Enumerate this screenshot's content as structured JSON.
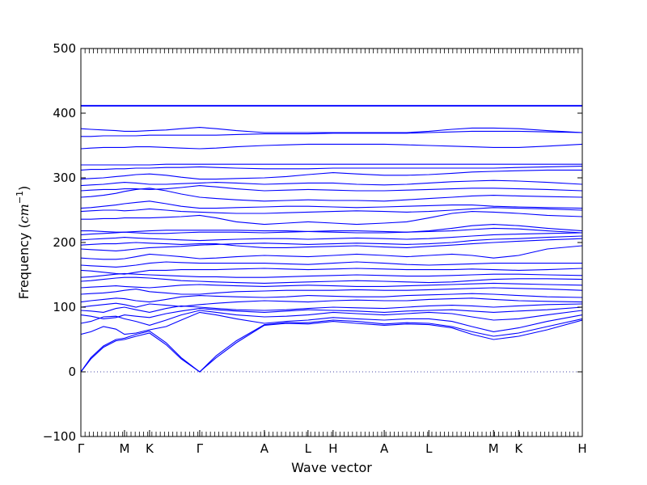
{
  "chart_data": {
    "type": "line",
    "title": "",
    "xlabel": "Wave vector",
    "ylabel_prefix": "Frequency (",
    "ylabel_unit": "cm",
    "ylabel_exp": "−1",
    "ylabel_suffix": ")",
    "ylim": [
      -100,
      500
    ],
    "yticks": [
      -100,
      0,
      100,
      200,
      300,
      400,
      500
    ],
    "grid": false,
    "legend": "none",
    "line_color": "#0000ff",
    "zero_line_color": "#4a4aa8",
    "path_labels": [
      {
        "label": "Γ",
        "pos": 0.0
      },
      {
        "label": "M",
        "pos": 0.087
      },
      {
        "label": "K",
        "pos": 0.137
      },
      {
        "label": "Γ",
        "pos": 0.237
      },
      {
        "label": "A",
        "pos": 0.366
      },
      {
        "label": "L",
        "pos": 0.453
      },
      {
        "label": "H",
        "pos": 0.503
      },
      {
        "label": "A",
        "pos": 0.605
      },
      {
        "label": "L",
        "pos": 0.694
      },
      {
        "label": "M",
        "pos": 0.823
      },
      {
        "label": "K",
        "pos": 0.873
      },
      {
        "label": "H",
        "pos": 1.0
      }
    ],
    "x": [
      0.0,
      0.02,
      0.045,
      0.07,
      0.087,
      0.11,
      0.137,
      0.17,
      0.2,
      0.237,
      0.27,
      0.31,
      0.366,
      0.41,
      0.453,
      0.503,
      0.55,
      0.605,
      0.65,
      0.694,
      0.74,
      0.78,
      0.823,
      0.873,
      0.93,
      1.0
    ],
    "series": [
      {
        "values": [
          0,
          20,
          38,
          48,
          50,
          55,
          60,
          42,
          20,
          0,
          22,
          45,
          72,
          75,
          74,
          78,
          75,
          72,
          74,
          73,
          68,
          58,
          50,
          55,
          65,
          80
        ]
      },
      {
        "values": [
          0,
          22,
          40,
          50,
          52,
          58,
          63,
          45,
          22,
          0,
          25,
          48,
          73,
          76,
          76,
          80,
          78,
          74,
          76,
          75,
          70,
          62,
          55,
          60,
          70,
          82
        ]
      },
      {
        "values": [
          58,
          62,
          70,
          66,
          58,
          60,
          65,
          70,
          80,
          92,
          88,
          82,
          75,
          78,
          80,
          84,
          82,
          80,
          82,
          82,
          78,
          70,
          62,
          68,
          78,
          88
        ]
      },
      {
        "values": [
          75,
          78,
          85,
          86,
          82,
          78,
          72,
          80,
          88,
          95,
          92,
          88,
          85,
          86,
          88,
          92,
          90,
          88,
          90,
          92,
          90,
          85,
          80,
          82,
          88,
          95
        ]
      },
      {
        "values": [
          88,
          86,
          82,
          84,
          88,
          86,
          84,
          90,
          94,
          98,
          96,
          94,
          92,
          94,
          96,
          95,
          94,
          92,
          94,
          95,
          96,
          94,
          92,
          94,
          96,
          100
        ]
      },
      {
        "values": [
          95,
          94,
          92,
          98,
          100,
          96,
          92,
          98,
          102,
          100,
          98,
          96,
          95,
          96,
          98,
          100,
          99,
          98,
          100,
          102,
          103,
          102,
          100,
          102,
          104,
          105
        ]
      },
      {
        "values": [
          100,
          102,
          104,
          106,
          104,
          100,
          105,
          103,
          101,
          104,
          106,
          108,
          110,
          109,
          108,
          110,
          111,
          110,
          110,
          112,
          113,
          114,
          112,
          110,
          109,
          108
        ]
      },
      {
        "values": [
          108,
          110,
          112,
          114,
          113,
          110,
          108,
          112,
          116,
          118,
          117,
          116,
          115,
          116,
          118,
          117,
          116,
          116,
          118,
          119,
          120,
          121,
          120,
          118,
          116,
          115
        ]
      },
      {
        "values": [
          120,
          121,
          122,
          124,
          126,
          128,
          124,
          122,
          120,
          120,
          122,
          124,
          125,
          126,
          126,
          126,
          127,
          126,
          126,
          127,
          128,
          129,
          130,
          129,
          128,
          126
        ]
      },
      {
        "values": [
          130,
          131,
          132,
          133,
          132,
          131,
          130,
          132,
          134,
          135,
          134,
          133,
          132,
          133,
          134,
          133,
          132,
          132,
          133,
          134,
          135,
          136,
          137,
          136,
          135,
          134
        ]
      },
      {
        "values": [
          140,
          141,
          143,
          145,
          146,
          146,
          145,
          143,
          141,
          140,
          139,
          138,
          137,
          138,
          139,
          140,
          141,
          140,
          139,
          138,
          139,
          141,
          143,
          144,
          144,
          143
        ]
      },
      {
        "values": [
          146,
          147,
          149,
          151,
          152,
          151,
          150,
          149,
          148,
          147,
          147,
          146,
          146,
          147,
          148,
          149,
          150,
          149,
          148,
          148,
          149,
          150,
          151,
          151,
          150,
          149
        ]
      },
      {
        "values": [
          157,
          156,
          154,
          152,
          151,
          154,
          157,
          157,
          158,
          158,
          158,
          159,
          160,
          159,
          158,
          159,
          160,
          159,
          158,
          158,
          158,
          159,
          158,
          157,
          158,
          160
        ]
      },
      {
        "values": [
          165,
          164,
          163,
          162,
          163,
          165,
          168,
          170,
          169,
          168,
          168,
          168,
          168,
          167,
          166,
          168,
          170,
          168,
          166,
          165,
          166,
          167,
          168,
          168,
          168,
          168
        ]
      },
      {
        "values": [
          176,
          175,
          174,
          174,
          175,
          178,
          182,
          180,
          178,
          175,
          176,
          178,
          180,
          179,
          178,
          180,
          182,
          180,
          178,
          180,
          182,
          180,
          176,
          180,
          190,
          195
        ]
      },
      {
        "values": [
          190,
          189,
          188,
          187,
          188,
          190,
          192,
          193,
          194,
          196,
          197,
          198,
          199,
          198,
          197,
          198,
          199,
          198,
          197,
          198,
          200,
          203,
          205,
          206,
          208,
          210
        ]
      },
      {
        "values": [
          196,
          197,
          198,
          198,
          199,
          200,
          199,
          198,
          197,
          198,
          198,
          195,
          192,
          192,
          193,
          194,
          195,
          193,
          192,
          194,
          196,
          198,
          200,
          202,
          204,
          206
        ]
      },
      {
        "values": [
          204,
          205,
          206,
          207,
          208,
          207,
          206,
          205,
          204,
          203,
          204,
          205,
          206,
          206,
          205,
          206,
          207,
          206,
          205,
          206,
          208,
          210,
          212,
          213,
          214,
          215
        ]
      },
      {
        "values": [
          212,
          213,
          214,
          215,
          216,
          215,
          214,
          214,
          215,
          216,
          216,
          216,
          215,
          216,
          217,
          216,
          215,
          215,
          216,
          217,
          218,
          220,
          222,
          221,
          218,
          215
        ]
      },
      {
        "values": [
          218,
          218,
          217,
          216,
          216,
          217,
          218,
          219,
          219,
          219,
          219,
          219,
          218,
          218,
          217,
          218,
          218,
          217,
          216,
          218,
          222,
          226,
          228,
          226,
          222,
          218
        ]
      },
      {
        "values": [
          236,
          236,
          237,
          237,
          238,
          238,
          238,
          239,
          240,
          242,
          238,
          232,
          228,
          230,
          232,
          230,
          228,
          230,
          232,
          238,
          245,
          248,
          247,
          245,
          242,
          240
        ]
      },
      {
        "values": [
          248,
          249,
          250,
          250,
          249,
          250,
          252,
          250,
          248,
          247,
          246,
          245,
          245,
          246,
          247,
          248,
          249,
          248,
          247,
          248,
          250,
          252,
          254,
          253,
          252,
          250
        ]
      },
      {
        "values": [
          253,
          254,
          256,
          258,
          260,
          262,
          264,
          260,
          256,
          253,
          253,
          254,
          255,
          256,
          256,
          255,
          254,
          255,
          256,
          257,
          258,
          258,
          256,
          255,
          254,
          253
        ]
      },
      {
        "values": [
          270,
          271,
          273,
          276,
          279,
          282,
          284,
          280,
          275,
          270,
          268,
          266,
          264,
          265,
          266,
          265,
          265,
          264,
          266,
          268,
          270,
          272,
          273,
          272,
          271,
          270
        ]
      },
      {
        "values": [
          280,
          281,
          282,
          282,
          283,
          283,
          282,
          283,
          285,
          288,
          286,
          283,
          280,
          281,
          282,
          281,
          280,
          280,
          281,
          282,
          283,
          284,
          284,
          283,
          282,
          280
        ]
      },
      {
        "values": [
          288,
          289,
          290,
          292,
          293,
          292,
          290,
          290,
          291,
          292,
          293,
          292,
          290,
          291,
          292,
          292,
          290,
          289,
          290,
          292,
          294,
          295,
          296,
          295,
          293,
          290
        ]
      },
      {
        "values": [
          298,
          299,
          300,
          302,
          303,
          305,
          306,
          304,
          301,
          298,
          298,
          299,
          300,
          302,
          305,
          308,
          306,
          304,
          304,
          305,
          307,
          309,
          310,
          311,
          312,
          312
        ]
      },
      {
        "values": [
          312,
          313,
          313,
          314,
          314,
          315,
          315,
          316,
          316,
          317,
          316,
          315,
          314,
          314,
          314,
          315,
          315,
          315,
          315,
          315,
          315,
          315,
          315,
          316,
          317,
          318
        ]
      },
      {
        "values": [
          320,
          320,
          320,
          320,
          320,
          320,
          320,
          321,
          321,
          321,
          321,
          321,
          321,
          321,
          321,
          321,
          321,
          321,
          321,
          321,
          321,
          321,
          321,
          321,
          321,
          321
        ]
      },
      {
        "values": [
          345,
          346,
          347,
          347,
          347,
          348,
          348,
          347,
          346,
          345,
          346,
          348,
          350,
          351,
          352,
          352,
          352,
          352,
          351,
          350,
          349,
          348,
          347,
          347,
          349,
          352
        ]
      },
      {
        "values": [
          364,
          364,
          365,
          365,
          365,
          365,
          366,
          366,
          366,
          366,
          366,
          367,
          368,
          368,
          368,
          369,
          369,
          369,
          369,
          370,
          371,
          372,
          372,
          372,
          371,
          370
        ]
      },
      {
        "values": [
          376,
          375,
          374,
          373,
          372,
          372,
          373,
          374,
          376,
          378,
          376,
          373,
          370,
          370,
          370,
          370,
          370,
          370,
          370,
          372,
          375,
          377,
          377,
          376,
          373,
          370
        ]
      },
      {
        "values": [
          411,
          411,
          411,
          411,
          411,
          411,
          411,
          411,
          411,
          411,
          411,
          411,
          411,
          411,
          411,
          411,
          411,
          411,
          411,
          411,
          411,
          411,
          411,
          411,
          411,
          411
        ]
      },
      {
        "values": [
          412,
          412,
          412,
          412,
          412,
          412,
          412,
          412,
          412,
          412,
          412,
          412,
          412,
          412,
          412,
          412,
          412,
          412,
          412,
          412,
          412,
          412,
          412,
          412,
          412,
          412
        ]
      }
    ]
  }
}
